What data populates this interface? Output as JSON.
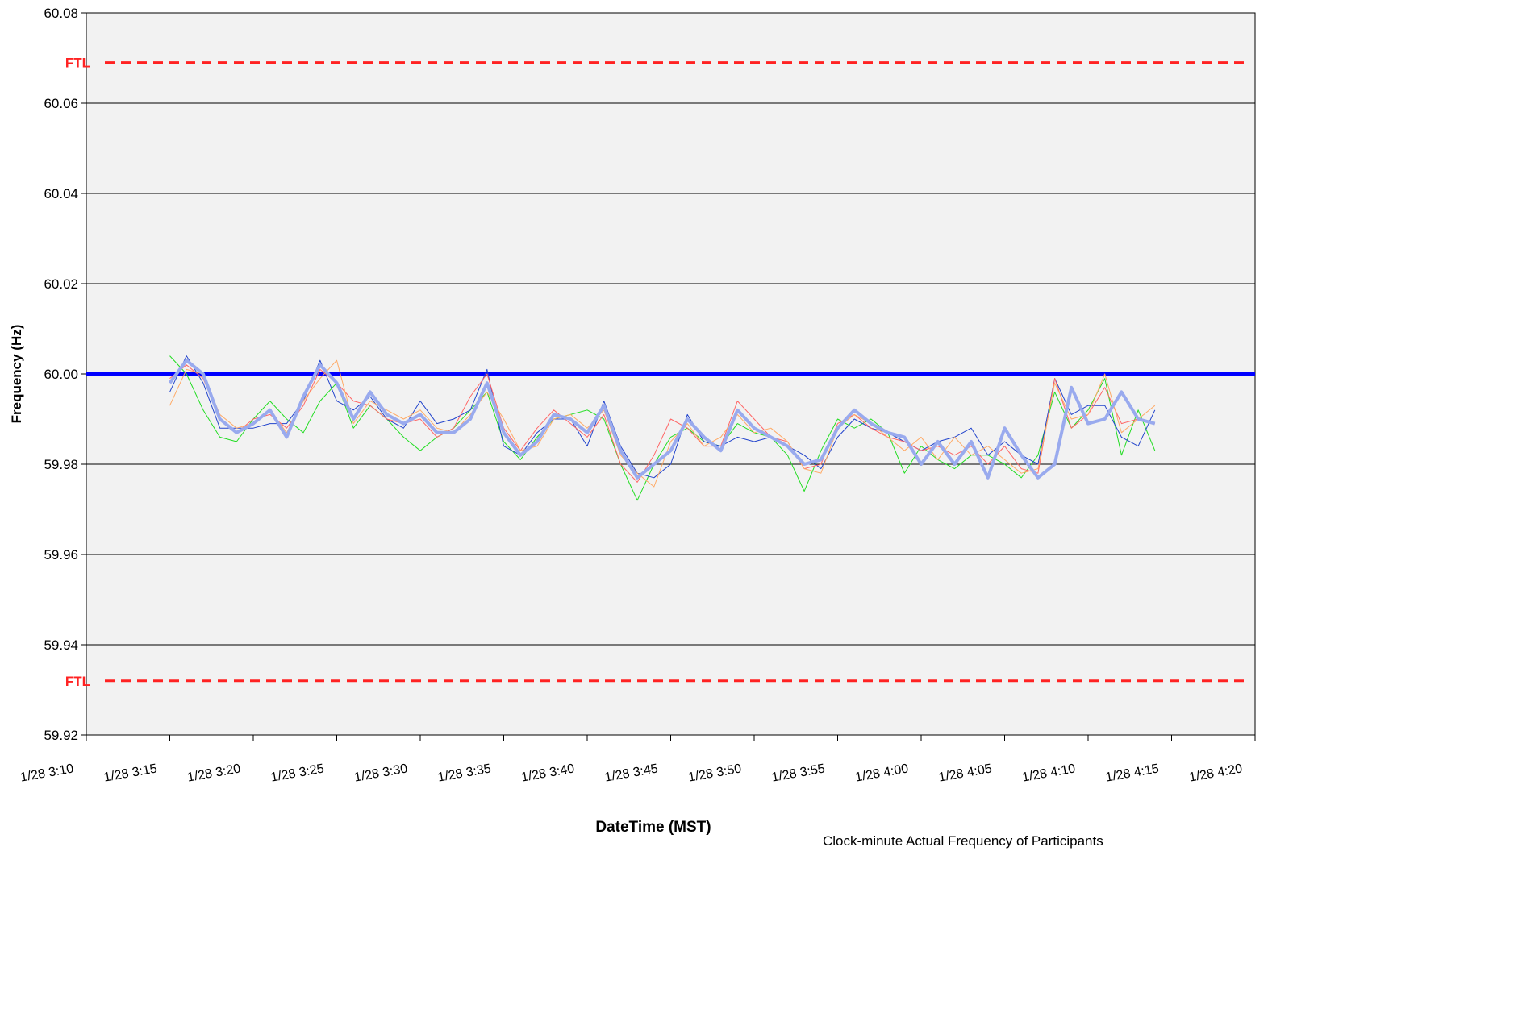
{
  "chart_data": {
    "type": "line",
    "x_label": "DateTime (MST)",
    "y_label": "Frequency (Hz)",
    "annotation": "Clock-minute Actual Frequency of Participants",
    "x": [
      "1/28 3:15",
      "1/28 3:16",
      "1/28 3:17",
      "1/28 3:18",
      "1/28 3:19",
      "1/28 3:20",
      "1/28 3:21",
      "1/28 3:22",
      "1/28 3:23",
      "1/28 3:24",
      "1/28 3:25",
      "1/28 3:26",
      "1/28 3:27",
      "1/28 3:28",
      "1/28 3:29",
      "1/28 3:30",
      "1/28 3:31",
      "1/28 3:32",
      "1/28 3:33",
      "1/28 3:34",
      "1/28 3:35",
      "1/28 3:36",
      "1/28 3:37",
      "1/28 3:38",
      "1/28 3:39",
      "1/28 3:40",
      "1/28 3:41",
      "1/28 3:42",
      "1/28 3:43",
      "1/28 3:44",
      "1/28 3:45",
      "1/28 3:46",
      "1/28 3:47",
      "1/28 3:48",
      "1/28 3:49",
      "1/28 3:50",
      "1/28 3:51",
      "1/28 3:52",
      "1/28 3:53",
      "1/28 3:54",
      "1/28 3:55",
      "1/28 3:56",
      "1/28 3:57",
      "1/28 3:58",
      "1/28 3:59",
      "1/28 4:00",
      "1/28 4:01",
      "1/28 4:02",
      "1/28 4:03",
      "1/28 4:04",
      "1/28 4:05",
      "1/28 4:06",
      "1/28 4:07",
      "1/28 4:08",
      "1/28 4:09",
      "1/28 4:10",
      "1/28 4:11",
      "1/28 4:12",
      "1/28 4:13",
      "1/28 4:14"
    ],
    "series": [
      {
        "color": "#22dd22",
        "width": 1,
        "values": [
          60.004,
          60.0,
          59.992,
          59.986,
          59.985,
          59.99,
          59.994,
          59.99,
          59.987,
          59.994,
          59.998,
          59.988,
          59.993,
          59.99,
          59.986,
          59.983,
          59.986,
          59.988,
          59.992,
          59.996,
          59.985,
          59.981,
          59.986,
          59.99,
          59.991,
          59.992,
          59.99,
          59.98,
          59.972,
          59.98,
          59.986,
          59.988,
          59.985,
          59.984,
          59.989,
          59.987,
          59.986,
          59.982,
          59.974,
          59.983,
          59.99,
          59.988,
          59.99,
          59.987,
          59.978,
          59.984,
          59.981,
          59.979,
          59.982,
          59.982,
          59.98,
          59.977,
          59.982,
          59.996,
          59.988,
          59.992,
          59.999,
          59.982,
          59.992,
          59.983
        ]
      },
      {
        "color": "#2244cc",
        "width": 1,
        "values": [
          59.996,
          60.004,
          59.998,
          59.988,
          59.988,
          59.988,
          59.989,
          59.989,
          59.994,
          60.003,
          59.994,
          59.992,
          59.995,
          59.99,
          59.988,
          59.994,
          59.989,
          59.99,
          59.992,
          60.001,
          59.984,
          59.982,
          59.987,
          59.99,
          59.99,
          59.984,
          59.994,
          59.984,
          59.978,
          59.977,
          59.98,
          59.991,
          59.985,
          59.984,
          59.986,
          59.985,
          59.986,
          59.984,
          59.982,
          59.979,
          59.986,
          59.99,
          59.988,
          59.987,
          59.985,
          59.983,
          59.985,
          59.986,
          59.988,
          59.982,
          59.985,
          59.982,
          59.98,
          59.999,
          59.991,
          59.993,
          59.993,
          59.986,
          59.984,
          59.992
        ]
      },
      {
        "color": "#ff6666",
        "width": 1,
        "values": [
          59.999,
          60.002,
          59.999,
          59.99,
          59.987,
          59.99,
          59.991,
          59.988,
          59.993,
          60.001,
          59.998,
          59.994,
          59.993,
          59.99,
          59.989,
          59.99,
          59.986,
          59.988,
          59.995,
          60.0,
          59.988,
          59.983,
          59.988,
          59.992,
          59.989,
          59.986,
          59.991,
          59.98,
          59.976,
          59.982,
          59.99,
          59.988,
          59.984,
          59.984,
          59.994,
          59.99,
          59.986,
          59.985,
          59.979,
          59.98,
          59.989,
          59.991,
          59.988,
          59.986,
          59.985,
          59.983,
          59.984,
          59.982,
          59.984,
          59.98,
          59.984,
          59.979,
          59.978,
          59.999,
          59.988,
          59.991,
          59.997,
          59.989,
          59.99,
          59.989
        ]
      },
      {
        "color": "#ffaa66",
        "width": 1,
        "values": [
          59.993,
          60.001,
          60.0,
          59.991,
          59.988,
          59.989,
          59.992,
          59.987,
          59.994,
          59.999,
          60.003,
          59.989,
          59.994,
          59.992,
          59.99,
          59.992,
          59.988,
          59.987,
          59.991,
          59.996,
          59.99,
          59.983,
          59.984,
          59.99,
          59.991,
          59.988,
          59.992,
          59.982,
          59.978,
          59.975,
          59.985,
          59.989,
          59.984,
          59.986,
          59.991,
          59.987,
          59.988,
          59.985,
          59.979,
          59.978,
          59.988,
          59.991,
          59.989,
          59.986,
          59.983,
          59.986,
          59.981,
          59.986,
          59.982,
          59.984,
          59.981,
          59.978,
          59.979,
          59.998,
          59.99,
          59.991,
          60.0,
          59.987,
          59.99,
          59.993
        ]
      },
      {
        "color": "#99aaee",
        "width": 4,
        "values": [
          59.998,
          60.003,
          60.0,
          59.99,
          59.987,
          59.989,
          59.992,
          59.986,
          59.995,
          60.002,
          59.998,
          59.99,
          59.996,
          59.991,
          59.989,
          59.991,
          59.987,
          59.987,
          59.99,
          59.998,
          59.987,
          59.982,
          59.985,
          59.991,
          59.99,
          59.987,
          59.993,
          59.983,
          59.977,
          59.98,
          59.983,
          59.99,
          59.986,
          59.983,
          59.992,
          59.988,
          59.986,
          59.984,
          59.98,
          59.981,
          59.988,
          59.992,
          59.989,
          59.987,
          59.986,
          59.98,
          59.985,
          59.98,
          59.985,
          59.977,
          59.988,
          59.982,
          59.977,
          59.98,
          59.997,
          59.989,
          59.99,
          59.996,
          59.99,
          59.989
        ]
      }
    ],
    "ref_lines": [
      {
        "label": "FTL",
        "value": 60.069,
        "color": "#ff2222",
        "dashed": true
      },
      {
        "value": 60.0,
        "color": "#0000ff",
        "dashed": false
      },
      {
        "label": "FTL",
        "value": 59.932,
        "color": "#ff2222",
        "dashed": true
      }
    ],
    "xlim": [
      "1/28 3:10",
      "1/28 4:20"
    ],
    "xticks": [
      "1/28 3:10",
      "1/28 3:15",
      "1/28 3:20",
      "1/28 3:25",
      "1/28 3:30",
      "1/28 3:35",
      "1/28 3:40",
      "1/28 3:45",
      "1/28 3:50",
      "1/28 3:55",
      "1/28 4:00",
      "1/28 4:05",
      "1/28 4:10",
      "1/28 4:15",
      "1/28 4:20"
    ],
    "ylim": [
      59.92,
      60.08
    ],
    "yticks": [
      59.92,
      59.94,
      59.96,
      59.98,
      {
        "value": 60.0,
        "label": "60.00"
      },
      60.02,
      60.04,
      60.06,
      60.08
    ],
    "grid": true
  }
}
